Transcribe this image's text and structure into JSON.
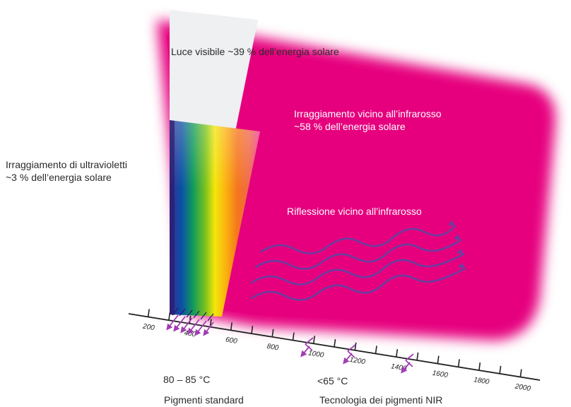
{
  "labels": {
    "visible_light": "Luce visibile ~39 % dell’energia solare",
    "nir_line1": "Irraggiamento vicino all’infrarosso",
    "nir_line2": "~58 % dell’energia solare",
    "uv_line1": "Irraggiamento di ultravioletti",
    "uv_line2": "~3 % dell’energia solare",
    "nir_reflection": "Riflessione vicino all’infrarosso",
    "temp_standard": "80 – 85 °C",
    "temp_nir": "<65 °C",
    "caption_standard": "Pigmenti standard",
    "caption_nir": "Tecnologia dei pigmenti NIR"
  },
  "axis": {
    "ticks": [
      "200",
      "400",
      "600",
      "800",
      "1000",
      "1200",
      "1400",
      "1600",
      "1800",
      "2000"
    ]
  },
  "colors": {
    "nir_magenta": "#e6007e",
    "wave_purple": "#6a3fa0",
    "arrow_purple": "#a23cb4",
    "visible_beam": "#eef0f2"
  }
}
